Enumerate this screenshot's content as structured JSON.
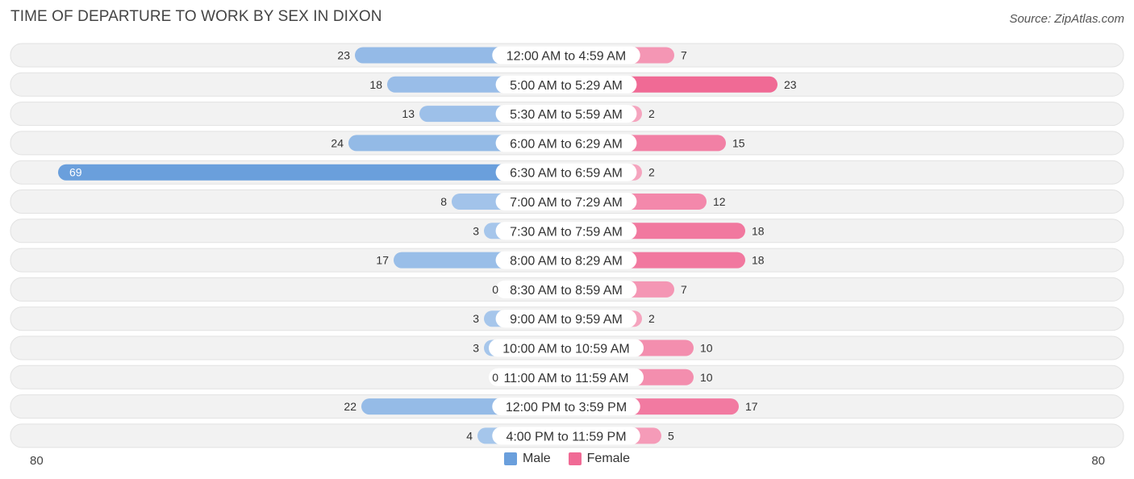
{
  "title": "TIME OF DEPARTURE TO WORK BY SEX IN DIXON",
  "source": "Source: ZipAtlas.com",
  "colors": {
    "male_strong": "#6a9fdc",
    "male_light": "#a9c8ec",
    "female_strong": "#f06a95",
    "female_light": "#f6a9c2",
    "row_bg": "#eeeeee"
  },
  "legend": [
    {
      "label": "Male",
      "color": "#6a9fdc"
    },
    {
      "label": "Female",
      "color": "#f06a95"
    }
  ],
  "axis": {
    "left_label": "80",
    "right_label": "80"
  },
  "chart_data": {
    "type": "bar",
    "orientation": "horizontal-diverging",
    "max": 80,
    "categories": [
      "12:00 AM to 4:59 AM",
      "5:00 AM to 5:29 AM",
      "5:30 AM to 5:59 AM",
      "6:00 AM to 6:29 AM",
      "6:30 AM to 6:59 AM",
      "7:00 AM to 7:29 AM",
      "7:30 AM to 7:59 AM",
      "8:00 AM to 8:29 AM",
      "8:30 AM to 8:59 AM",
      "9:00 AM to 9:59 AM",
      "10:00 AM to 10:59 AM",
      "11:00 AM to 11:59 AM",
      "12:00 PM to 3:59 PM",
      "4:00 PM to 11:59 PM"
    ],
    "series": [
      {
        "name": "Male",
        "values": [
          23,
          18,
          13,
          24,
          69,
          8,
          3,
          17,
          0,
          3,
          3,
          0,
          22,
          4
        ]
      },
      {
        "name": "Female",
        "values": [
          7,
          23,
          2,
          15,
          2,
          12,
          18,
          18,
          7,
          2,
          10,
          10,
          17,
          5
        ]
      }
    ]
  }
}
